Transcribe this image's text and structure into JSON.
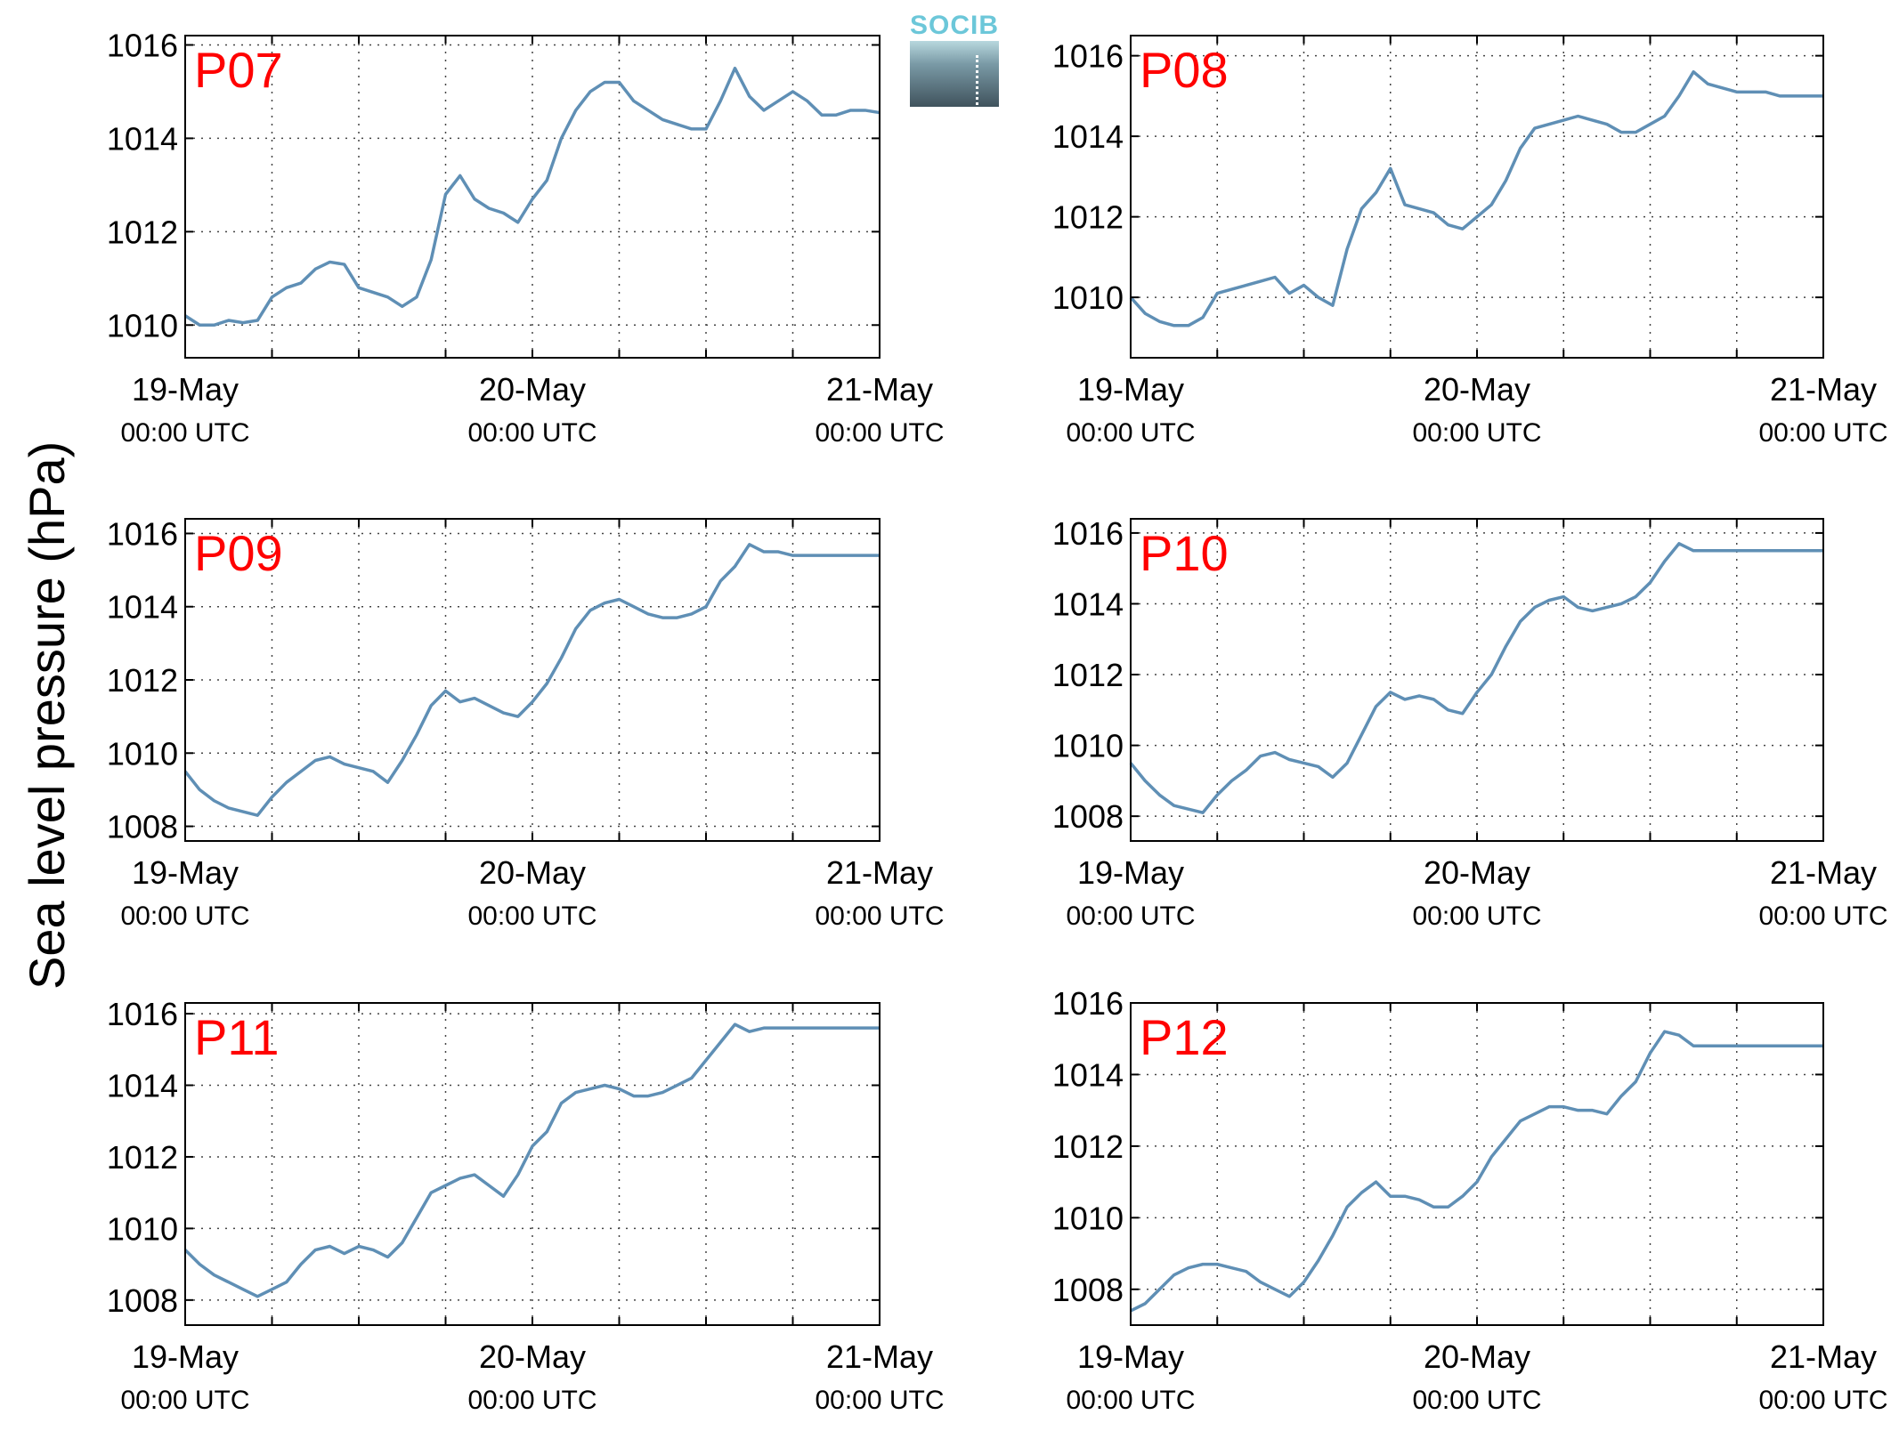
{
  "figure": {
    "ylabel": "Sea level pressure (hPa)",
    "logo_text": "SOCIB"
  },
  "chart_data": [
    {
      "type": "line",
      "panel_label": "P07",
      "ylim": [
        1009.3,
        1016.2
      ],
      "yticks": [
        1010,
        1012,
        1014,
        1016
      ],
      "xlim": [
        "19-May 00:00 UTC",
        "21-May 00:00 UTC"
      ],
      "xtick_labels": [
        [
          "19-May",
          "00:00 UTC"
        ],
        [
          "20-May",
          "00:00 UTC"
        ],
        [
          "21-May",
          "00:00 UTC"
        ]
      ],
      "grid": true,
      "line_color": "#5f8fb5",
      "x_hours": [
        0,
        1,
        2,
        3,
        4,
        5,
        6,
        7,
        8,
        9,
        10,
        11,
        12,
        13,
        14,
        15,
        16,
        17,
        18,
        19,
        20,
        21,
        22,
        23,
        24,
        25,
        26,
        27,
        28,
        29,
        30,
        31,
        32,
        33,
        34,
        35,
        36,
        37,
        38,
        39,
        40,
        41,
        42,
        43,
        44,
        45,
        46,
        47,
        48
      ],
      "values": [
        1010.2,
        1010.0,
        1010.0,
        1010.1,
        1010.05,
        1010.1,
        1010.6,
        1010.8,
        1010.9,
        1011.2,
        1011.35,
        1011.3,
        1010.8,
        1010.7,
        1010.6,
        1010.4,
        1010.6,
        1011.4,
        1012.8,
        1013.2,
        1012.7,
        1012.5,
        1012.4,
        1012.2,
        1012.7,
        1013.1,
        1014.0,
        1014.6,
        1015.0,
        1015.2,
        1015.2,
        1014.8,
        1014.6,
        1014.4,
        1014.3,
        1014.2,
        1014.2,
        1014.8,
        1015.5,
        1014.9,
        1014.6,
        1014.8,
        1015.0,
        1014.8,
        1014.5,
        1014.5,
        1014.6,
        1014.6,
        1014.55
      ]
    },
    {
      "type": "line",
      "panel_label": "P08",
      "ylim": [
        1008.5,
        1016.5
      ],
      "yticks": [
        1010,
        1012,
        1014,
        1016
      ],
      "xlim": [
        "19-May 00:00 UTC",
        "21-May 00:00 UTC"
      ],
      "xtick_labels": [
        [
          "19-May",
          "00:00 UTC"
        ],
        [
          "20-May",
          "00:00 UTC"
        ],
        [
          "21-May",
          "00:00 UTC"
        ]
      ],
      "grid": true,
      "line_color": "#5f8fb5",
      "x_hours": [
        0,
        1,
        2,
        3,
        4,
        5,
        6,
        7,
        8,
        9,
        10,
        11,
        12,
        13,
        14,
        15,
        16,
        17,
        18,
        19,
        20,
        21,
        22,
        23,
        24,
        25,
        26,
        27,
        28,
        29,
        30,
        31,
        32,
        33,
        34,
        35,
        36,
        37,
        38,
        39,
        40,
        41,
        42,
        43,
        44,
        45,
        46,
        47,
        48
      ],
      "values": [
        1010.0,
        1009.6,
        1009.4,
        1009.3,
        1009.3,
        1009.5,
        1010.1,
        1010.2,
        1010.3,
        1010.4,
        1010.5,
        1010.1,
        1010.3,
        1010.0,
        1009.8,
        1011.2,
        1012.2,
        1012.6,
        1013.2,
        1012.3,
        1012.2,
        1012.1,
        1011.8,
        1011.7,
        1012.0,
        1012.3,
        1012.9,
        1013.7,
        1014.2,
        1014.3,
        1014.4,
        1014.5,
        1014.4,
        1014.3,
        1014.1,
        1014.1,
        1014.3,
        1014.5,
        1015.0,
        1015.6,
        1015.3,
        1015.2,
        1015.1,
        1015.1,
        1015.1,
        1015.0,
        1015.0,
        1015.0,
        1015.0
      ]
    },
    {
      "type": "line",
      "panel_label": "P09",
      "ylim": [
        1007.6,
        1016.4
      ],
      "yticks": [
        1008,
        1010,
        1012,
        1014,
        1016
      ],
      "xlim": [
        "19-May 00:00 UTC",
        "21-May 00:00 UTC"
      ],
      "xtick_labels": [
        [
          "19-May",
          "00:00 UTC"
        ],
        [
          "20-May",
          "00:00 UTC"
        ],
        [
          "21-May",
          "00:00 UTC"
        ]
      ],
      "grid": true,
      "line_color": "#5f8fb5",
      "x_hours": [
        0,
        1,
        2,
        3,
        4,
        5,
        6,
        7,
        8,
        9,
        10,
        11,
        12,
        13,
        14,
        15,
        16,
        17,
        18,
        19,
        20,
        21,
        22,
        23,
        24,
        25,
        26,
        27,
        28,
        29,
        30,
        31,
        32,
        33,
        34,
        35,
        36,
        37,
        38,
        39,
        40,
        41,
        42,
        43,
        44,
        45,
        46,
        47,
        48
      ],
      "values": [
        1009.5,
        1009.0,
        1008.7,
        1008.5,
        1008.4,
        1008.3,
        1008.8,
        1009.2,
        1009.5,
        1009.8,
        1009.9,
        1009.7,
        1009.6,
        1009.5,
        1009.2,
        1009.8,
        1010.5,
        1011.3,
        1011.7,
        1011.4,
        1011.5,
        1011.3,
        1011.1,
        1011.0,
        1011.4,
        1011.9,
        1012.6,
        1013.4,
        1013.9,
        1014.1,
        1014.2,
        1014.0,
        1013.8,
        1013.7,
        1013.7,
        1013.8,
        1014.0,
        1014.7,
        1015.1,
        1015.7,
        1015.5,
        1015.5,
        1015.4,
        1015.4,
        1015.4,
        1015.4,
        1015.4,
        1015.4,
        1015.4
      ]
    },
    {
      "type": "line",
      "panel_label": "P10",
      "ylim": [
        1007.3,
        1016.4
      ],
      "yticks": [
        1008,
        1010,
        1012,
        1014,
        1016
      ],
      "xlim": [
        "19-May 00:00 UTC",
        "21-May 00:00 UTC"
      ],
      "xtick_labels": [
        [
          "19-May",
          "00:00 UTC"
        ],
        [
          "20-May",
          "00:00 UTC"
        ],
        [
          "21-May",
          "00:00 UTC"
        ]
      ],
      "grid": true,
      "line_color": "#5f8fb5",
      "x_hours": [
        0,
        1,
        2,
        3,
        4,
        5,
        6,
        7,
        8,
        9,
        10,
        11,
        12,
        13,
        14,
        15,
        16,
        17,
        18,
        19,
        20,
        21,
        22,
        23,
        24,
        25,
        26,
        27,
        28,
        29,
        30,
        31,
        32,
        33,
        34,
        35,
        36,
        37,
        38,
        39,
        40,
        41,
        42,
        43,
        44,
        45,
        46,
        47,
        48
      ],
      "values": [
        1009.5,
        1009.0,
        1008.6,
        1008.3,
        1008.2,
        1008.1,
        1008.6,
        1009.0,
        1009.3,
        1009.7,
        1009.8,
        1009.6,
        1009.5,
        1009.4,
        1009.1,
        1009.5,
        1010.3,
        1011.1,
        1011.5,
        1011.3,
        1011.4,
        1011.3,
        1011.0,
        1010.9,
        1011.5,
        1012.0,
        1012.8,
        1013.5,
        1013.9,
        1014.1,
        1014.2,
        1013.9,
        1013.8,
        1013.9,
        1014.0,
        1014.2,
        1014.6,
        1015.2,
        1015.7,
        1015.5,
        1015.5,
        1015.5,
        1015.5,
        1015.5,
        1015.5,
        1015.5,
        1015.5,
        1015.5,
        1015.5
      ]
    },
    {
      "type": "line",
      "panel_label": "P11",
      "ylim": [
        1007.3,
        1016.3
      ],
      "yticks": [
        1008,
        1010,
        1012,
        1014,
        1016
      ],
      "xlim": [
        "19-May 00:00 UTC",
        "21-May 00:00 UTC"
      ],
      "xtick_labels": [
        [
          "19-May",
          "00:00 UTC"
        ],
        [
          "20-May",
          "00:00 UTC"
        ],
        [
          "21-May",
          "00:00 UTC"
        ]
      ],
      "grid": true,
      "line_color": "#5f8fb5",
      "x_hours": [
        0,
        1,
        2,
        3,
        4,
        5,
        6,
        7,
        8,
        9,
        10,
        11,
        12,
        13,
        14,
        15,
        16,
        17,
        18,
        19,
        20,
        21,
        22,
        23,
        24,
        25,
        26,
        27,
        28,
        29,
        30,
        31,
        32,
        33,
        34,
        35,
        36,
        37,
        38,
        39,
        40,
        41,
        42,
        43,
        44,
        45,
        46,
        47,
        48
      ],
      "values": [
        1009.4,
        1009.0,
        1008.7,
        1008.5,
        1008.3,
        1008.1,
        1008.3,
        1008.5,
        1009.0,
        1009.4,
        1009.5,
        1009.3,
        1009.5,
        1009.4,
        1009.2,
        1009.6,
        1010.3,
        1011.0,
        1011.2,
        1011.4,
        1011.5,
        1011.2,
        1010.9,
        1011.5,
        1012.3,
        1012.7,
        1013.5,
        1013.8,
        1013.9,
        1014.0,
        1013.9,
        1013.7,
        1013.7,
        1013.8,
        1014.0,
        1014.2,
        1014.7,
        1015.2,
        1015.7,
        1015.5,
        1015.6,
        1015.6,
        1015.6,
        1015.6,
        1015.6,
        1015.6,
        1015.6,
        1015.6,
        1015.6
      ]
    },
    {
      "type": "line",
      "panel_label": "P12",
      "ylim": [
        1007.0,
        1016.0
      ],
      "yticks": [
        1008,
        1010,
        1012,
        1014,
        1016
      ],
      "xlim": [
        "19-May 00:00 UTC",
        "21-May 00:00 UTC"
      ],
      "xtick_labels": [
        [
          "19-May",
          "00:00 UTC"
        ],
        [
          "20-May",
          "00:00 UTC"
        ],
        [
          "21-May",
          "00:00 UTC"
        ]
      ],
      "grid": true,
      "line_color": "#5f8fb5",
      "x_hours": [
        0,
        1,
        2,
        3,
        4,
        5,
        6,
        7,
        8,
        9,
        10,
        11,
        12,
        13,
        14,
        15,
        16,
        17,
        18,
        19,
        20,
        21,
        22,
        23,
        24,
        25,
        26,
        27,
        28,
        29,
        30,
        31,
        32,
        33,
        34,
        35,
        36,
        37,
        38,
        39,
        40,
        41,
        42,
        43,
        44,
        45,
        46,
        47,
        48
      ],
      "values": [
        1007.4,
        1007.6,
        1008.0,
        1008.4,
        1008.6,
        1008.7,
        1008.7,
        1008.6,
        1008.5,
        1008.2,
        1008.0,
        1007.8,
        1008.2,
        1008.8,
        1009.5,
        1010.3,
        1010.7,
        1011.0,
        1010.6,
        1010.6,
        1010.5,
        1010.3,
        1010.3,
        1010.6,
        1011.0,
        1011.7,
        1012.2,
        1012.7,
        1012.9,
        1013.1,
        1013.1,
        1013.0,
        1013.0,
        1012.9,
        1013.4,
        1013.8,
        1014.6,
        1015.2,
        1015.1,
        1014.8,
        1014.8,
        1014.8,
        1014.8,
        1014.8,
        1014.8,
        1014.8,
        1014.8,
        1014.8,
        1014.8
      ]
    }
  ]
}
